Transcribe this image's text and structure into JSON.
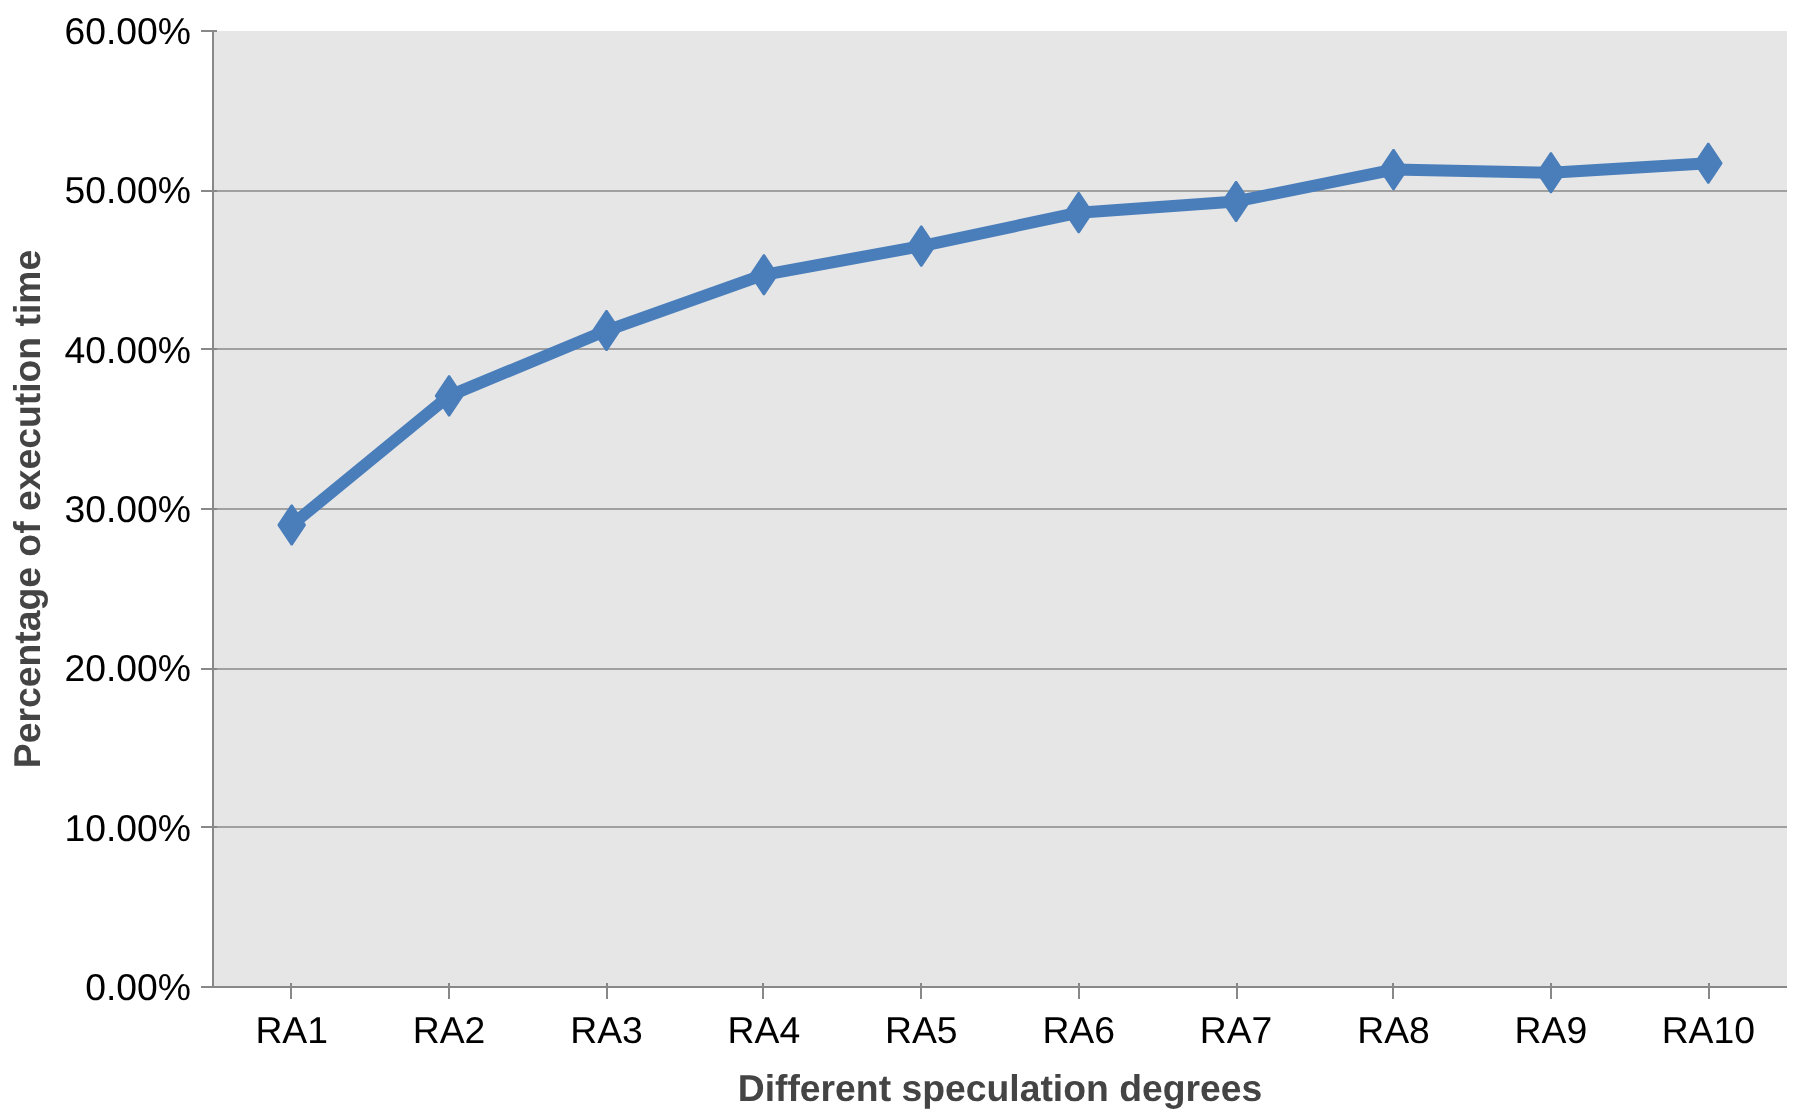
{
  "chart_data": {
    "type": "line",
    "xlabel": "Different speculation degrees",
    "ylabel": "Percentage of execution time",
    "categories": [
      "RA1",
      "RA2",
      "RA3",
      "RA4",
      "RA5",
      "RA6",
      "RA7",
      "RA8",
      "RA9",
      "RA10"
    ],
    "series": [
      {
        "color": "#4a7ebb",
        "values": [
          29.0,
          37.1,
          41.2,
          44.7,
          46.5,
          48.6,
          49.3,
          51.3,
          51.1,
          51.7
        ]
      }
    ],
    "ylim": [
      0,
      60
    ],
    "yticks": [
      {
        "value": 0,
        "label": "0.00%"
      },
      {
        "value": 10,
        "label": "10.00%"
      },
      {
        "value": 20,
        "label": "20.00%"
      },
      {
        "value": 30,
        "label": "30.00%"
      },
      {
        "value": 40,
        "label": "40.00%"
      },
      {
        "value": 50,
        "label": "50.00%"
      },
      {
        "value": 60,
        "label": "60.00%"
      }
    ],
    "grid": "y",
    "marker": "diamond",
    "line_style": "solid"
  }
}
